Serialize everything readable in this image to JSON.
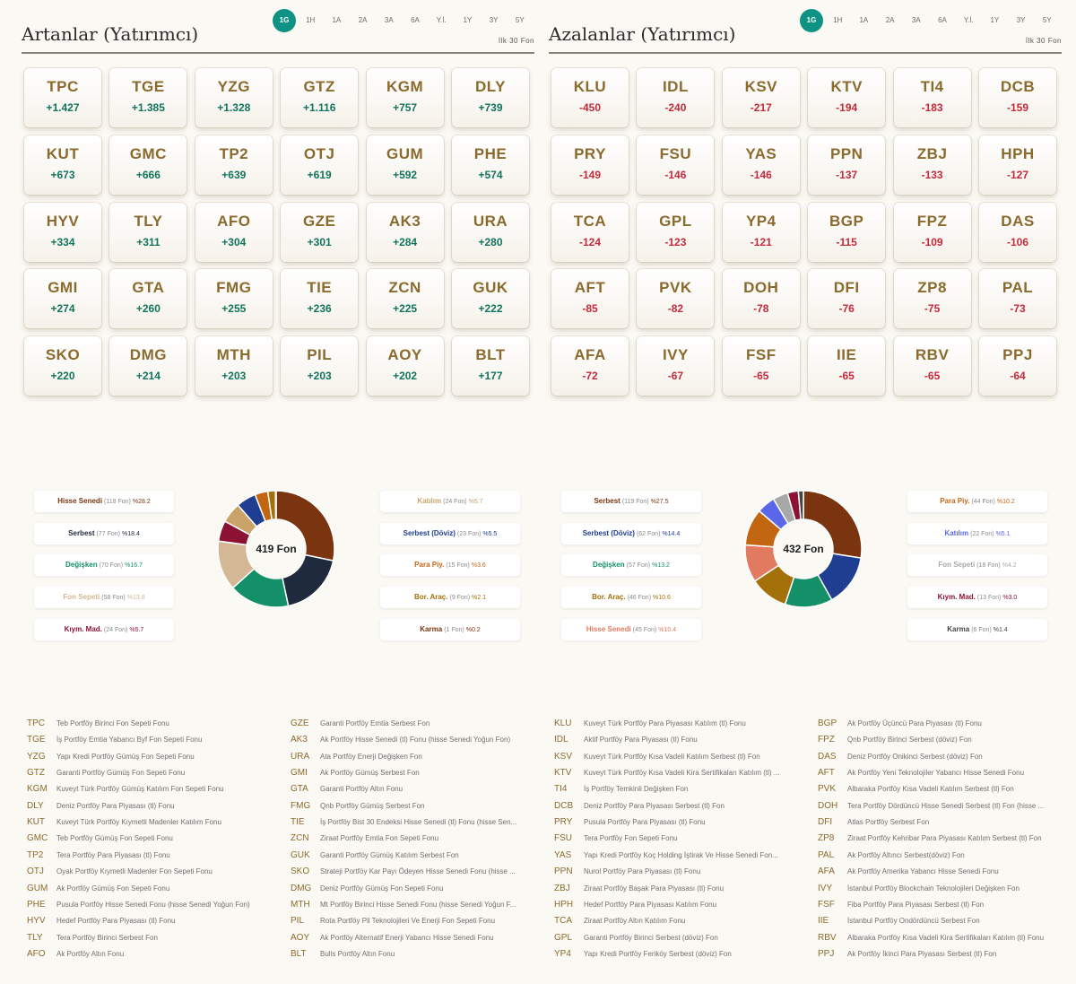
{
  "periods": [
    "1G",
    "1H",
    "1A",
    "2A",
    "3A",
    "6A",
    "Y.İ.",
    "1Y",
    "3Y",
    "5Y"
  ],
  "active_period": "1G",
  "colors": {
    "accent": "#0e9284",
    "code": "#8b6a2d",
    "positive": "#12745c",
    "negative": "#c42a3c"
  },
  "left": {
    "title": "Artanlar (Yatırımcı)",
    "subtitle": "İlk 30 Fon",
    "sign": "pos",
    "cards": [
      {
        "code": "TPC",
        "value": "+1.427"
      },
      {
        "code": "TGE",
        "value": "+1.385"
      },
      {
        "code": "YZG",
        "value": "+1.328"
      },
      {
        "code": "GTZ",
        "value": "+1.116"
      },
      {
        "code": "KGM",
        "value": "+757"
      },
      {
        "code": "DLY",
        "value": "+739"
      },
      {
        "code": "KUT",
        "value": "+673"
      },
      {
        "code": "GMC",
        "value": "+666"
      },
      {
        "code": "TP2",
        "value": "+639"
      },
      {
        "code": "OTJ",
        "value": "+619"
      },
      {
        "code": "GUM",
        "value": "+592"
      },
      {
        "code": "PHE",
        "value": "+574"
      },
      {
        "code": "HYV",
        "value": "+334"
      },
      {
        "code": "TLY",
        "value": "+311"
      },
      {
        "code": "AFO",
        "value": "+304"
      },
      {
        "code": "GZE",
        "value": "+301"
      },
      {
        "code": "AK3",
        "value": "+284"
      },
      {
        "code": "URA",
        "value": "+280"
      },
      {
        "code": "GMI",
        "value": "+274"
      },
      {
        "code": "GTA",
        "value": "+260"
      },
      {
        "code": "FMG",
        "value": "+255"
      },
      {
        "code": "TIE",
        "value": "+236"
      },
      {
        "code": "ZCN",
        "value": "+225"
      },
      {
        "code": "GUK",
        "value": "+222"
      },
      {
        "code": "SKO",
        "value": "+220"
      },
      {
        "code": "DMG",
        "value": "+214"
      },
      {
        "code": "MTH",
        "value": "+203"
      },
      {
        "code": "PIL",
        "value": "+203"
      },
      {
        "code": "AOY",
        "value": "+202"
      },
      {
        "code": "BLT",
        "value": "+177"
      }
    ],
    "donut_center": "419 Fon",
    "distribution": [
      {
        "name": "Hisse Senedi",
        "count": "(118 Fon)",
        "pct": "%28.2",
        "value": 28.2,
        "color": "#7a3510",
        "side": "left"
      },
      {
        "name": "Serbest",
        "count": "(77 Fon)",
        "pct": "%18.4",
        "value": 18.4,
        "color": "#1f2a3c",
        "side": "left"
      },
      {
        "name": "Değişken",
        "count": "(70 Fon)",
        "pct": "%16.7",
        "value": 16.7,
        "color": "#139067",
        "side": "left"
      },
      {
        "name": "Fon Sepeti",
        "count": "(58 Fon)",
        "pct": "%13.8",
        "value": 13.8,
        "color": "#d4b896",
        "side": "left"
      },
      {
        "name": "Kıym. Mad.",
        "count": "(24 Fon)",
        "pct": "%5.7",
        "value": 5.7,
        "color": "#8c1233",
        "side": "left"
      },
      {
        "name": "Katılım",
        "count": "(24 Fon)",
        "pct": "%5.7",
        "value": 5.7,
        "color": "#c9a36a",
        "side": "right"
      },
      {
        "name": "Serbest (Döviz)",
        "count": "(23 Fon)",
        "pct": "%5.5",
        "value": 5.5,
        "color": "#1f3d91",
        "side": "right"
      },
      {
        "name": "Para Piy.",
        "count": "(15 Fon)",
        "pct": "%3.6",
        "value": 3.6,
        "color": "#c26612",
        "side": "right"
      },
      {
        "name": "Bor. Araç.",
        "count": "(9 Fon)",
        "pct": "%2.1",
        "value": 2.1,
        "color": "#a3700a",
        "side": "right"
      },
      {
        "name": "Karma",
        "count": "(1 Fon)",
        "pct": "%0.2",
        "value": 0.2,
        "color": "#7a3510",
        "side": "right"
      }
    ],
    "funds_col1": [
      {
        "code": "TPC",
        "name": "Teb Portföy Birinci Fon Sepeti Fonu"
      },
      {
        "code": "TGE",
        "name": "İş Portföy Emtia Yabancı Byf Fon Sepeti Fonu"
      },
      {
        "code": "YZG",
        "name": "Yapı Kredi Portföy Gümüş Fon Sepeti Fonu"
      },
      {
        "code": "GTZ",
        "name": "Garanti Portföy Gümüş Fon Sepeti Fonu"
      },
      {
        "code": "KGM",
        "name": "Kuveyt Türk Portföy Gümüş Katılım Fon Sepeti Fonu"
      },
      {
        "code": "DLY",
        "name": "Deniz Portföy Para Piyasası (tl) Fonu"
      },
      {
        "code": "KUT",
        "name": "Kuveyt Türk Portföy Kıymetli Madenler Katılım Fonu"
      },
      {
        "code": "GMC",
        "name": "Teb Portföy Gümüş Fon Sepeti Fonu"
      },
      {
        "code": "TP2",
        "name": "Tera Portföy Para Piyasası (tl) Fonu"
      },
      {
        "code": "OTJ",
        "name": "Oyak Portföy Kıymetli Madenler Fon Sepeti Fonu"
      },
      {
        "code": "GUM",
        "name": "Ak Portföy Gümüş Fon Sepeti Fonu"
      },
      {
        "code": "PHE",
        "name": "Pusula Portföy Hisse Senedi Fonu (hisse Senedi Yoğun Fon)"
      },
      {
        "code": "HYV",
        "name": "Hedef Portföy Para Piyasası (tl) Fonu"
      },
      {
        "code": "TLY",
        "name": "Tera Portföy Birinci Serbest Fon"
      },
      {
        "code": "AFO",
        "name": "Ak Portföy Altın Fonu"
      }
    ],
    "funds_col2": [
      {
        "code": "GZE",
        "name": "Garanti Portföy Emtia Serbest Fon"
      },
      {
        "code": "AK3",
        "name": "Ak Portföy Hisse Senedi (tl) Fonu (hisse Senedi Yoğun Fon)"
      },
      {
        "code": "URA",
        "name": "Ata Portföy Enerji Değişken Fon"
      },
      {
        "code": "GMI",
        "name": "Ak Portföy Gümüş Serbest Fon"
      },
      {
        "code": "GTA",
        "name": "Garanti Portföy Altın Fonu"
      },
      {
        "code": "FMG",
        "name": "Qnb Portföy Gümüş Serbest Fon"
      },
      {
        "code": "TIE",
        "name": "İş Portföy Bist 30 Endeksi Hisse Senedi (tl) Fonu (hisse Sen..."
      },
      {
        "code": "ZCN",
        "name": "Ziraat Portföy Emtia Fon Sepeti Fonu"
      },
      {
        "code": "GUK",
        "name": "Garanti Portföy Gümüş Katılım Serbest Fon"
      },
      {
        "code": "SKO",
        "name": "Strateji Portföy Kar Payı Ödeyen Hisse Senedi Fonu (hisse ..."
      },
      {
        "code": "DMG",
        "name": "Deniz Portföy Gümüş Fon Sepeti Fonu"
      },
      {
        "code": "MTH",
        "name": "Mt Portföy Birinci Hisse Senedi Fonu (hisse Senedi Yoğun F..."
      },
      {
        "code": "PIL",
        "name": "Rota Portföy Pil Teknolojileri Ve Enerji Fon Sepeti Fonu"
      },
      {
        "code": "AOY",
        "name": "Ak Portföy Alternatif Enerji Yabancı Hisse Senedi Fonu"
      },
      {
        "code": "BLT",
        "name": "Bulls Portföy Altın Fonu"
      }
    ]
  },
  "right": {
    "title": "Azalanlar (Yatırımcı)",
    "subtitle": "İlk 30 Fon",
    "sign": "neg",
    "cards": [
      {
        "code": "KLU",
        "value": "-450"
      },
      {
        "code": "IDL",
        "value": "-240"
      },
      {
        "code": "KSV",
        "value": "-217"
      },
      {
        "code": "KTV",
        "value": "-194"
      },
      {
        "code": "TI4",
        "value": "-183"
      },
      {
        "code": "DCB",
        "value": "-159"
      },
      {
        "code": "PRY",
        "value": "-149"
      },
      {
        "code": "FSU",
        "value": "-146"
      },
      {
        "code": "YAS",
        "value": "-146"
      },
      {
        "code": "PPN",
        "value": "-137"
      },
      {
        "code": "ZBJ",
        "value": "-133"
      },
      {
        "code": "HPH",
        "value": "-127"
      },
      {
        "code": "TCA",
        "value": "-124"
      },
      {
        "code": "GPL",
        "value": "-123"
      },
      {
        "code": "YP4",
        "value": "-121"
      },
      {
        "code": "BGP",
        "value": "-115"
      },
      {
        "code": "FPZ",
        "value": "-109"
      },
      {
        "code": "DAS",
        "value": "-106"
      },
      {
        "code": "AFT",
        "value": "-85"
      },
      {
        "code": "PVK",
        "value": "-82"
      },
      {
        "code": "DOH",
        "value": "-78"
      },
      {
        "code": "DFI",
        "value": "-76"
      },
      {
        "code": "ZP8",
        "value": "-75"
      },
      {
        "code": "PAL",
        "value": "-73"
      },
      {
        "code": "AFA",
        "value": "-72"
      },
      {
        "code": "IVY",
        "value": "-67"
      },
      {
        "code": "FSF",
        "value": "-65"
      },
      {
        "code": "IIE",
        "value": "-65"
      },
      {
        "code": "RBV",
        "value": "-65"
      },
      {
        "code": "PPJ",
        "value": "-64"
      }
    ],
    "donut_center": "432 Fon",
    "distribution": [
      {
        "name": "Serbest",
        "count": "(119 Fon)",
        "pct": "%27.5",
        "value": 27.5,
        "color": "#7a3510",
        "side": "left"
      },
      {
        "name": "Serbest (Döviz)",
        "count": "(62 Fon)",
        "pct": "%14.4",
        "value": 14.4,
        "color": "#1f3d91",
        "side": "left"
      },
      {
        "name": "Değişken",
        "count": "(57 Fon)",
        "pct": "%13.2",
        "value": 13.2,
        "color": "#139067",
        "side": "left"
      },
      {
        "name": "Bor. Araç.",
        "count": "(46 Fon)",
        "pct": "%10.6",
        "value": 10.6,
        "color": "#a3700a",
        "side": "left"
      },
      {
        "name": "Hisse Senedi",
        "count": "(45 Fon)",
        "pct": "%10.4",
        "value": 10.4,
        "color": "#e27a60",
        "side": "left"
      },
      {
        "name": "Para Piy.",
        "count": "(44 Fon)",
        "pct": "%10.2",
        "value": 10.2,
        "color": "#c26612",
        "side": "right"
      },
      {
        "name": "Katılım",
        "count": "(22 Fon)",
        "pct": "%5.1",
        "value": 5.1,
        "color": "#5b67e8",
        "side": "right"
      },
      {
        "name": "Fon Sepeti",
        "count": "(18 Fon)",
        "pct": "%4.2",
        "value": 4.2,
        "color": "#a8a8a8",
        "side": "right"
      },
      {
        "name": "Kıym. Mad.",
        "count": "(13 Fon)",
        "pct": "%3.0",
        "value": 3.0,
        "color": "#8c1233",
        "side": "right"
      },
      {
        "name": "Karma",
        "count": "(6 Fon)",
        "pct": "%1.4",
        "value": 1.4,
        "color": "#444444",
        "side": "right"
      }
    ],
    "funds_col1": [
      {
        "code": "KLU",
        "name": "Kuveyt Türk Portföy Para Piyasası Katılım (tl) Fonu"
      },
      {
        "code": "IDL",
        "name": "Aktif Portföy Para Piyasası (tl) Fonu"
      },
      {
        "code": "KSV",
        "name": "Kuveyt Türk Portföy Kısa Vadeli Katılım Serbest (tl) Fon"
      },
      {
        "code": "KTV",
        "name": "Kuveyt Türk Portföy Kısa Vadeli Kira Sertifikaları Katılım (tl) ..."
      },
      {
        "code": "TI4",
        "name": "İş Portföy Temkinli Değişken Fon"
      },
      {
        "code": "DCB",
        "name": "Deniz Portföy Para Piyasası Serbest (tl) Fon"
      },
      {
        "code": "PRY",
        "name": "Pusula Portföy Para Piyasası (tl) Fonu"
      },
      {
        "code": "FSU",
        "name": "Tera Portföy Fon Sepeti Fonu"
      },
      {
        "code": "YAS",
        "name": "Yapı Kredi Portföy Koç Holding İştirak Ve Hisse Senedi Fon..."
      },
      {
        "code": "PPN",
        "name": "Nurol Portföy Para Piyasası (tl) Fonu"
      },
      {
        "code": "ZBJ",
        "name": "Ziraat Portföy Başak Para Piyasası (tl) Fonu"
      },
      {
        "code": "HPH",
        "name": "Hedef Portföy Para Piyasası Katılım Fonu"
      },
      {
        "code": "TCA",
        "name": "Ziraat Portföy Altın Katılım Fonu"
      },
      {
        "code": "GPL",
        "name": "Garanti Portföy Birinci Serbest (döviz) Fon"
      },
      {
        "code": "YP4",
        "name": "Yapı Kredi Portföy Feriköy Serbest (döviz) Fon"
      }
    ],
    "funds_col2": [
      {
        "code": "BGP",
        "name": "Ak Portföy Üçüncü Para Piyasası (tl) Fonu"
      },
      {
        "code": "FPZ",
        "name": "Qnb Portföy Birinci Serbest (döviz) Fon"
      },
      {
        "code": "DAS",
        "name": "Deniz Portföy Onikinci Serbest (döviz) Fon"
      },
      {
        "code": "AFT",
        "name": "Ak Portföy Yeni Teknolojiler Yabancı Hisse Senedi Fonu"
      },
      {
        "code": "PVK",
        "name": "Albaraka Portföy Kısa Vadeli Katılım Serbest (tl) Fon"
      },
      {
        "code": "DOH",
        "name": "Tera Portföy Dördüncü Hisse Senedi Serbest (tl) Fon (hisse ..."
      },
      {
        "code": "DFI",
        "name": "Atlas Portföy Serbest Fon"
      },
      {
        "code": "ZP8",
        "name": "Ziraat Portföy Kehribar Para Piyasası Katılım Serbest (tl) Fon"
      },
      {
        "code": "PAL",
        "name": "Ak Portföy Altıncı Serbest(döviz) Fon"
      },
      {
        "code": "AFA",
        "name": "Ak Portföy Amerika Yabancı Hisse Senedi Fonu"
      },
      {
        "code": "IVY",
        "name": "İstanbul Portföy Blockchain Teknolojileri Değişken Fon"
      },
      {
        "code": "FSF",
        "name": "Fiba Portföy Para Piyasası Serbest (tl) Fon"
      },
      {
        "code": "IIE",
        "name": "İstanbul Portföy Ondördüncü Serbest Fon"
      },
      {
        "code": "RBV",
        "name": "Albaraka Portföy Kısa Vadeli Kira Sertifikaları Katılım (tl) Fonu"
      },
      {
        "code": "PPJ",
        "name": "Ak Portföy İkinci Para Piyasası Serbest (tl) Fon"
      }
    ]
  }
}
